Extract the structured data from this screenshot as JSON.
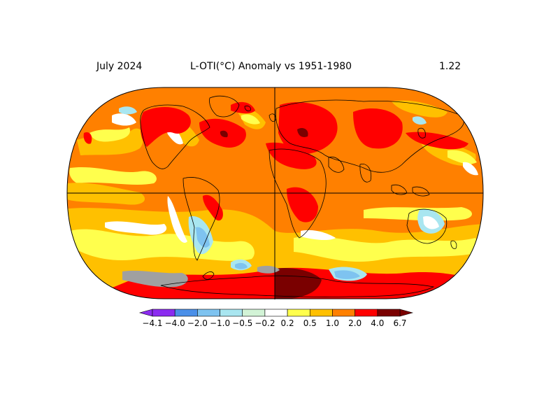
{
  "header": {
    "date": "July 2024",
    "title": "L-OTI(°C) Anomaly vs 1951-1980",
    "global_mean": "1.22"
  },
  "legend": {
    "bins": [
      {
        "color": "#8b2bf0",
        "label": "−4.1"
      },
      {
        "color": "#4a8fe8",
        "label": "−4.0"
      },
      {
        "color": "#7ec3f0",
        "label": "−2.0"
      },
      {
        "color": "#a9e6f0",
        "label": "−1.0"
      },
      {
        "color": "#d2f3d6",
        "label": "−0.5"
      },
      {
        "color": "#ffffff",
        "label": "−0.2"
      },
      {
        "color": "#ffff4d",
        "label": "0.2"
      },
      {
        "color": "#ffc000",
        "label": "0.5"
      },
      {
        "color": "#ff8000",
        "label": "1.0"
      },
      {
        "color": "#ff0000",
        "label": "2.0"
      },
      {
        "color": "#7a0000",
        "label": "4.0"
      }
    ],
    "last_label": "6.7",
    "nodata_color": "#a0a0a0"
  },
  "map": {
    "projection": "robinson",
    "background_color": "#ff8000",
    "coast_color": "#000000",
    "colors": {
      "red": "#ff0000",
      "darkred": "#7a0000",
      "orange": "#ff8000",
      "gold": "#ffc000",
      "yellow": "#ffff4d",
      "white": "#ffffff",
      "paleblue": "#a9e6f0",
      "lightblue": "#7ec3f0",
      "gray": "#a0a0a0",
      "palegreen": "#d2f3d6"
    }
  }
}
